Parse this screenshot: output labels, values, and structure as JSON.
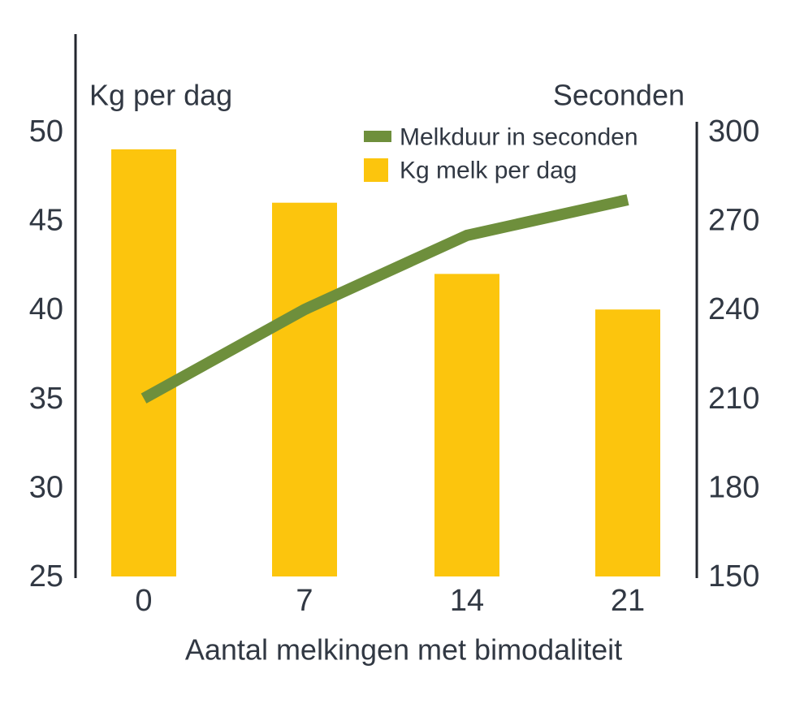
{
  "chart_data": {
    "type": "combo",
    "categories": [
      "0",
      "7",
      "14",
      "21"
    ],
    "series": [
      {
        "name": "Melkduur in seconden",
        "type": "line",
        "axis": "right",
        "color": "#6E8F3C",
        "values": [
          210,
          240,
          265,
          277
        ]
      },
      {
        "name": "Kg melk per dag",
        "type": "bar",
        "axis": "left",
        "color": "#FCC50D",
        "values": [
          49,
          46,
          42,
          40
        ]
      }
    ],
    "left_axis": {
      "label": "Kg per dag",
      "ticks": [
        25,
        30,
        35,
        40,
        45,
        50
      ],
      "range": [
        25,
        50
      ]
    },
    "right_axis": {
      "label": "Seconden",
      "ticks": [
        150,
        180,
        210,
        240,
        270,
        300
      ],
      "range": [
        150,
        300
      ]
    },
    "xlabel": "Aantal melkingen met bimodaliteit",
    "grid": false,
    "legend_position": "top-right-inside",
    "background": "#ffffff",
    "text_color": "#313843",
    "axis_color": "#23272f"
  }
}
